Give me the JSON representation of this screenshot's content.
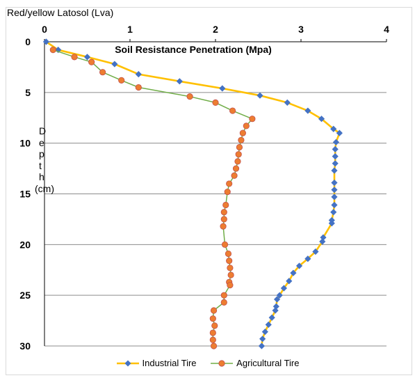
{
  "chart_data": {
    "type": "line",
    "title": "Red/yellow Latosol (Lva)",
    "subtitle": "Soil Resistance Penetration (Mpa)",
    "xlabel": "Soil Resistance Penetration (Mpa)",
    "ylabel_letters": [
      "D",
      "e",
      "p",
      "t",
      "h"
    ],
    "ylabel_unit": "(cm)",
    "xlim": [
      0,
      4
    ],
    "ylim": [
      0,
      30
    ],
    "y_inverted": true,
    "x_axis_position": "top",
    "x_ticks": [
      "0",
      "1",
      "2",
      "3",
      "4"
    ],
    "y_ticks": [
      "0",
      "5",
      "10",
      "15",
      "20",
      "25",
      "30"
    ],
    "grid": "horizontal",
    "legend_position": "bottom",
    "series": [
      {
        "name": "Industrial Tire",
        "line_color": "#FFC000",
        "marker_color": "#4472C4",
        "marker": "diamond",
        "points": [
          [
            0.02,
            0.0
          ],
          [
            0.16,
            0.8
          ],
          [
            0.5,
            1.5
          ],
          [
            0.82,
            2.2
          ],
          [
            1.1,
            3.2
          ],
          [
            1.58,
            3.9
          ],
          [
            2.08,
            4.6
          ],
          [
            2.52,
            5.3
          ],
          [
            2.84,
            6.0
          ],
          [
            3.08,
            6.8
          ],
          [
            3.24,
            7.6
          ],
          [
            3.38,
            8.6
          ],
          [
            3.45,
            9.0
          ],
          [
            3.41,
            9.9
          ],
          [
            3.4,
            10.6
          ],
          [
            3.4,
            11.3
          ],
          [
            3.4,
            12.0
          ],
          [
            3.39,
            12.7
          ],
          [
            3.39,
            13.9
          ],
          [
            3.39,
            14.6
          ],
          [
            3.39,
            15.3
          ],
          [
            3.39,
            16.1
          ],
          [
            3.38,
            16.8
          ],
          [
            3.36,
            17.6
          ],
          [
            3.36,
            17.9
          ],
          [
            3.26,
            19.3
          ],
          [
            3.25,
            19.7
          ],
          [
            3.17,
            20.7
          ],
          [
            3.08,
            21.4
          ],
          [
            2.98,
            22.1
          ],
          [
            2.91,
            22.8
          ],
          [
            2.86,
            23.6
          ],
          [
            2.8,
            24.3
          ],
          [
            2.75,
            25.0
          ],
          [
            2.72,
            25.4
          ],
          [
            2.71,
            26.1
          ],
          [
            2.7,
            26.5
          ],
          [
            2.66,
            27.2
          ],
          [
            2.62,
            27.9
          ],
          [
            2.58,
            28.6
          ],
          [
            2.55,
            29.3
          ],
          [
            2.54,
            30.0
          ]
        ]
      },
      {
        "name": "Agricultural Tire",
        "line_color": "#70AD47",
        "marker_color": "#ED7D31",
        "marker": "circle",
        "points": [
          [
            0.1,
            0.8
          ],
          [
            0.35,
            1.5
          ],
          [
            0.55,
            2.0
          ],
          [
            0.68,
            3.0
          ],
          [
            0.9,
            3.8
          ],
          [
            1.1,
            4.5
          ],
          [
            1.7,
            5.4
          ],
          [
            2.0,
            6.0
          ],
          [
            2.2,
            6.8
          ],
          [
            2.43,
            7.6
          ],
          [
            2.36,
            8.3
          ],
          [
            2.32,
            9.0
          ],
          [
            2.3,
            9.7
          ],
          [
            2.28,
            10.4
          ],
          [
            2.27,
            11.1
          ],
          [
            2.26,
            11.8
          ],
          [
            2.24,
            12.5
          ],
          [
            2.22,
            13.2
          ],
          [
            2.16,
            14.0
          ],
          [
            2.14,
            14.8
          ],
          [
            2.12,
            16.1
          ],
          [
            2.1,
            16.8
          ],
          [
            2.1,
            17.5
          ],
          [
            2.09,
            18.2
          ],
          [
            2.11,
            20.0
          ],
          [
            2.15,
            20.9
          ],
          [
            2.16,
            21.6
          ],
          [
            2.17,
            22.3
          ],
          [
            2.18,
            23.0
          ],
          [
            2.16,
            23.7
          ],
          [
            2.17,
            24.0
          ],
          [
            2.1,
            25.0
          ],
          [
            2.1,
            25.7
          ],
          [
            1.98,
            26.5
          ],
          [
            1.97,
            27.3
          ],
          [
            1.99,
            28.0
          ],
          [
            1.97,
            28.7
          ],
          [
            1.97,
            29.4
          ],
          [
            1.98,
            30.0
          ]
        ]
      }
    ]
  }
}
